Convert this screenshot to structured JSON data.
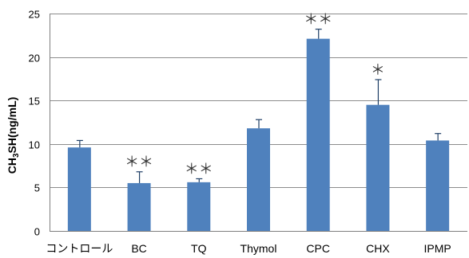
{
  "chart_data": {
    "type": "bar",
    "categories": [
      "コントロール",
      "BC",
      "TQ",
      "Thymol",
      "CPC",
      "CHX",
      "IPMP"
    ],
    "values": [
      9.6,
      5.5,
      5.6,
      11.8,
      22.1,
      14.5,
      10.4
    ],
    "errors": [
      0.8,
      1.3,
      0.4,
      1.0,
      1.1,
      2.9,
      0.8
    ],
    "significance": [
      "",
      "＊＊",
      "＊＊",
      "",
      "＊＊",
      "＊",
      ""
    ],
    "ylabel": "CH3SH(ng/mL)",
    "ylabel_parts": {
      "pre": "CH",
      "sub": "3",
      "post": "SH(ng/mL)"
    },
    "ylim": [
      0,
      25
    ],
    "yticks": [
      0,
      5,
      10,
      15,
      20,
      25
    ],
    "grid": true,
    "bar_color": "#4f81bd",
    "error_bar_color": "#1f3f66",
    "grid_color": "#8c8c8c"
  }
}
